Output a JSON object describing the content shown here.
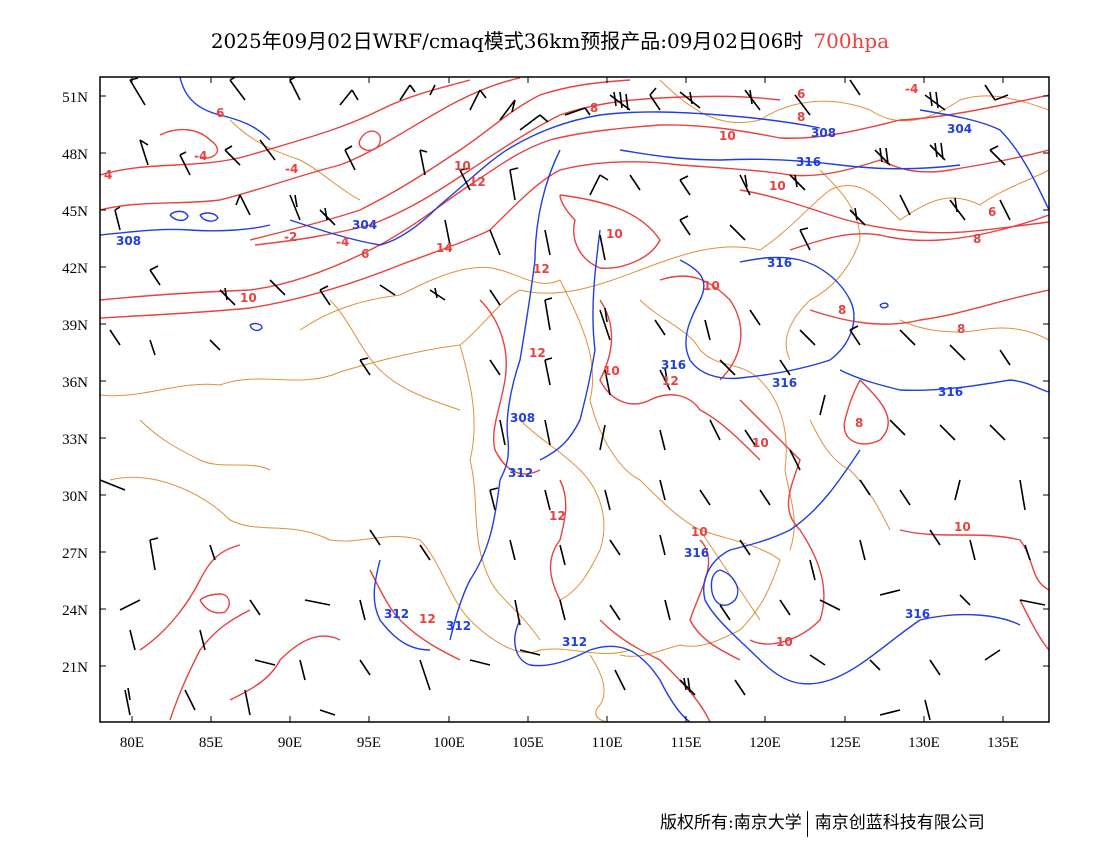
{
  "title": {
    "main": "2025年09月02日WRF/cmaq模式36km预报产品:09月02日06时",
    "level": "700hpa"
  },
  "colors": {
    "temperature": "#e8413f",
    "geopotential": "#1f3fe0",
    "boundary": "#e0913a",
    "wind": "#000000",
    "level_label": "#e8413f"
  },
  "axes": {
    "lon_labels": [
      "80E",
      "85E",
      "90E",
      "95E",
      "100E",
      "105E",
      "110E",
      "115E",
      "120E",
      "125E",
      "130E",
      "135E"
    ],
    "lat_labels": [
      "51N",
      "48N",
      "45N",
      "42N",
      "39N",
      "36N",
      "33N",
      "30N",
      "27N",
      "24N",
      "21N"
    ]
  },
  "contour_labels": {
    "temperature": [
      "6",
      "6",
      "8",
      "-4",
      "4",
      "-4",
      "-2",
      "-4",
      "6",
      "10",
      "12",
      "10",
      "14",
      "10",
      "12",
      "10",
      "12",
      "10",
      "10",
      "10",
      "12",
      "8",
      "8",
      "8",
      "10",
      "-4",
      "6",
      "8",
      "8",
      "12",
      "10",
      "10",
      "10",
      "12"
    ],
    "geopotential": [
      "308",
      "304",
      "308",
      "308",
      "312",
      "316",
      "316",
      "316",
      "304",
      "316",
      "312",
      "312",
      "312",
      "316",
      "316",
      "316"
    ]
  },
  "footer": {
    "copyright": "版权所有:南京大学",
    "company": "南京创蓝科技有限公司"
  }
}
